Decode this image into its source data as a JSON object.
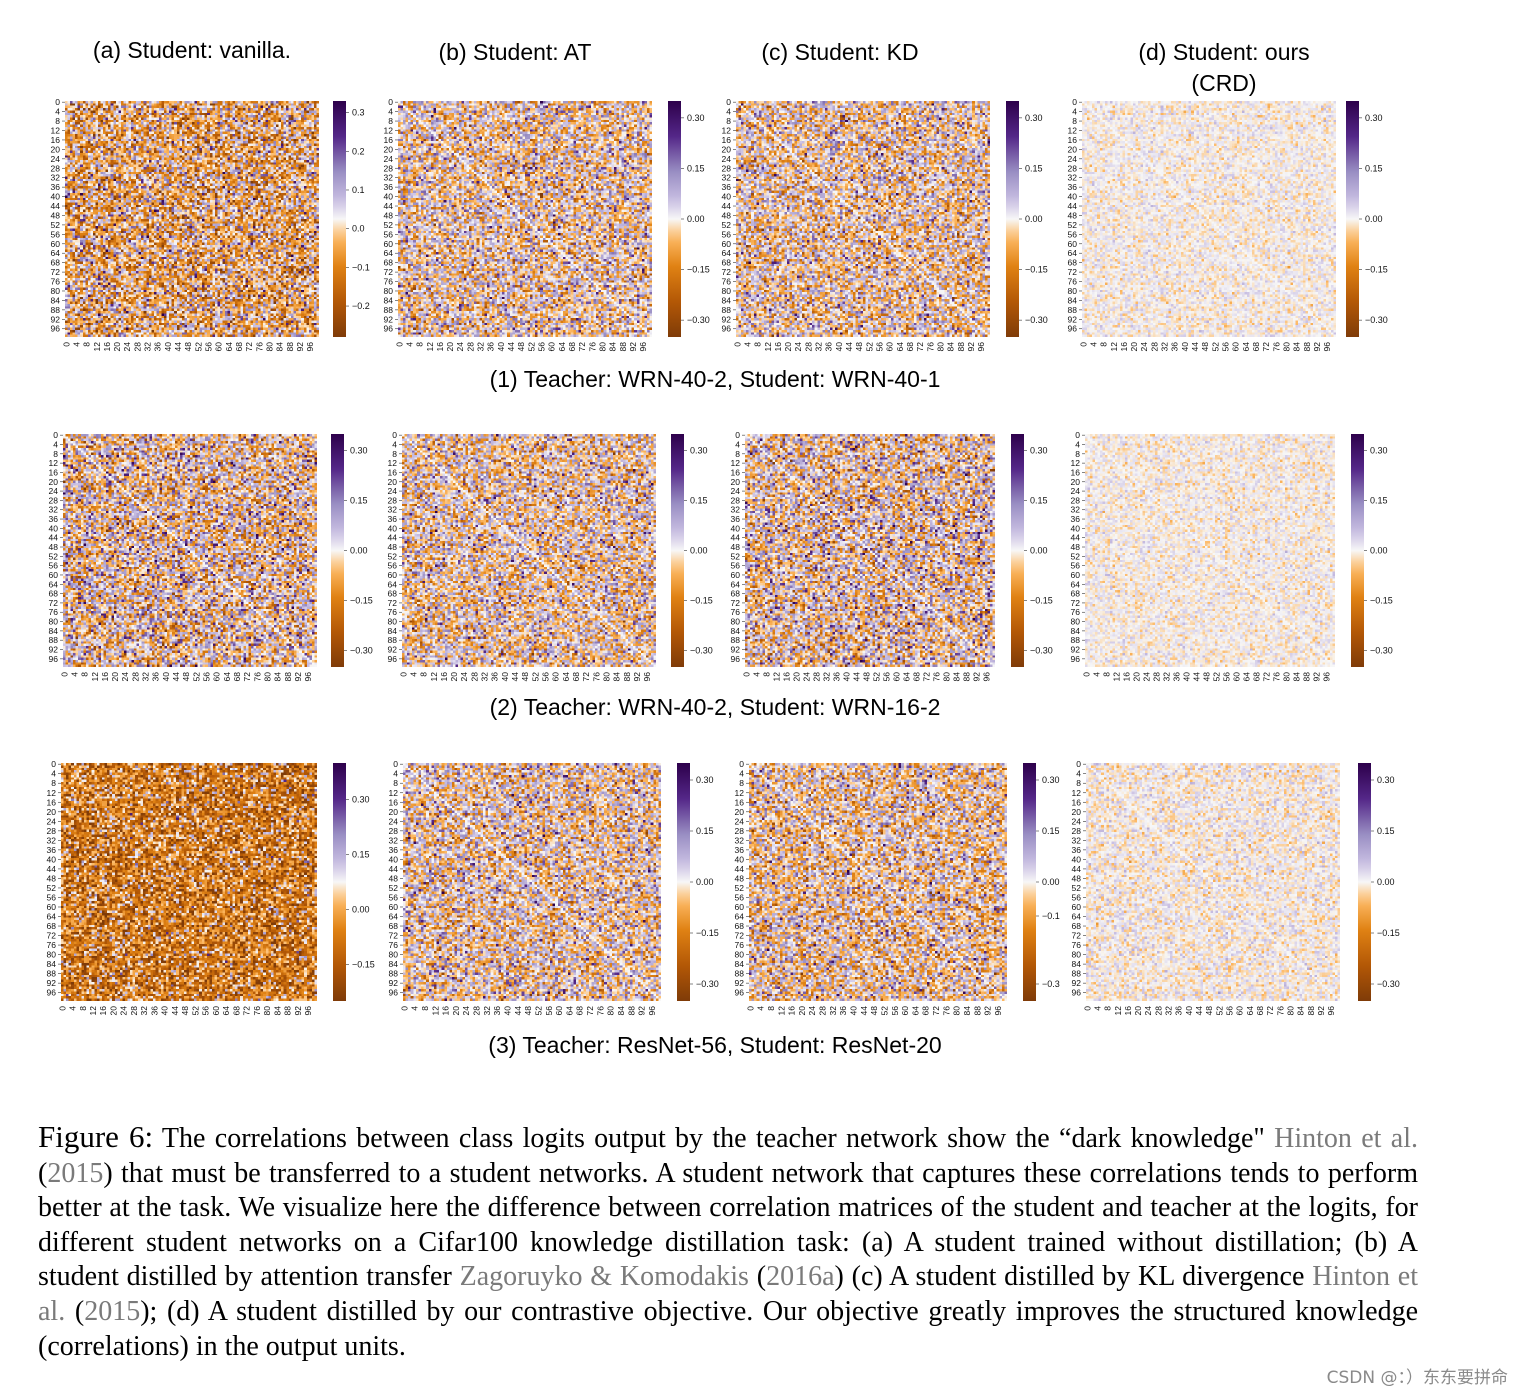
{
  "column_titles": [
    {
      "line1": "(a) Student: vanilla.",
      "line2": ""
    },
    {
      "line1": "(b) Student: AT",
      "line2": ""
    },
    {
      "line1": "(c) Student: KD",
      "line2": ""
    },
    {
      "line1": "(d) Student: ours",
      "line2": "(CRD)"
    }
  ],
  "row_captions": [
    "(1) Teacher: WRN-40-2, Student: WRN-40-1",
    "(2) Teacher: WRN-40-2, Student: WRN-16-2",
    "(3) Teacher: ResNet-56, Student: ResNet-20"
  ],
  "chart_data": {
    "type": "heatmap",
    "description": "Grid of 12 heatmaps: difference between correlation matrices of student and teacher logits (100x100 classes)",
    "colormap": {
      "negative": "#7f3b08",
      "zero": "#f7f7f7",
      "positive": "#2d004b"
    },
    "tick_labels": [
      "0",
      "4",
      "8",
      "12",
      "16",
      "20",
      "24",
      "28",
      "32",
      "36",
      "40",
      "44",
      "48",
      "52",
      "56",
      "60",
      "64",
      "68",
      "72",
      "76",
      "80",
      "84",
      "88",
      "92",
      "96"
    ],
    "matrix_size": 100,
    "panels": [
      {
        "row": 1,
        "col": "a",
        "colorbar_ticks": [
          "0.3",
          "0.2",
          "0.1",
          "0.0",
          "−0.1",
          "−0.2"
        ],
        "vmin": -0.28,
        "vmax": 0.33,
        "spread": 0.12,
        "bias": -0.02
      },
      {
        "row": 1,
        "col": "b",
        "colorbar_ticks": [
          "0.30",
          "0.15",
          "0.00",
          "−0.15",
          "−0.30"
        ],
        "vmin": -0.35,
        "vmax": 0.35,
        "spread": 0.11,
        "bias": 0.0
      },
      {
        "row": 1,
        "col": "c",
        "colorbar_ticks": [
          "0.30",
          "0.15",
          "0.00",
          "−0.15",
          "−0.30"
        ],
        "vmin": -0.35,
        "vmax": 0.35,
        "spread": 0.11,
        "bias": -0.005
      },
      {
        "row": 1,
        "col": "d",
        "colorbar_ticks": [
          "0.30",
          "0.15",
          "0.00",
          "−0.15",
          "−0.30"
        ],
        "vmin": -0.35,
        "vmax": 0.35,
        "spread": 0.025,
        "bias": 0.0
      },
      {
        "row": 2,
        "col": "a",
        "colorbar_ticks": [
          "0.30",
          "0.15",
          "0.00",
          "−0.15",
          "−0.30"
        ],
        "vmin": -0.35,
        "vmax": 0.35,
        "spread": 0.13,
        "bias": 0.0
      },
      {
        "row": 2,
        "col": "b",
        "colorbar_ticks": [
          "0.30",
          "0.15",
          "0.00",
          "−0.15",
          "−0.30"
        ],
        "vmin": -0.35,
        "vmax": 0.35,
        "spread": 0.11,
        "bias": 0.0
      },
      {
        "row": 2,
        "col": "c",
        "colorbar_ticks": [
          "0.30",
          "0.15",
          "0.00",
          "−0.15",
          "−0.30"
        ],
        "vmin": -0.35,
        "vmax": 0.35,
        "spread": 0.12,
        "bias": 0.005
      },
      {
        "row": 2,
        "col": "d",
        "colorbar_ticks": [
          "0.30",
          "0.15",
          "0.00",
          "−0.15",
          "−0.30"
        ],
        "vmin": -0.35,
        "vmax": 0.35,
        "spread": 0.025,
        "bias": 0.0
      },
      {
        "row": 3,
        "col": "a",
        "colorbar_ticks": [
          "0.30",
          "0.15",
          "0.00",
          "−0.15"
        ],
        "vmin": -0.25,
        "vmax": 0.4,
        "spread": 0.12,
        "bias": -0.07
      },
      {
        "row": 3,
        "col": "b",
        "colorbar_ticks": [
          "0.30",
          "0.15",
          "0.00",
          "−0.15",
          "−0.30"
        ],
        "vmin": -0.35,
        "vmax": 0.35,
        "spread": 0.11,
        "bias": 0.0
      },
      {
        "row": 3,
        "col": "c",
        "colorbar_ticks": [
          "0.30",
          "0.15",
          "0.00",
          "−0.1",
          "−0.3"
        ],
        "vmin": -0.35,
        "vmax": 0.35,
        "spread": 0.11,
        "bias": -0.01
      },
      {
        "row": 3,
        "col": "d",
        "colorbar_ticks": [
          "0.30",
          "0.15",
          "0.00",
          "−0.15",
          "−0.30"
        ],
        "vmin": -0.35,
        "vmax": 0.35,
        "spread": 0.03,
        "bias": 0.0
      }
    ]
  },
  "caption": {
    "figure_label": "Figure 6:",
    "t1": " The correlations between class logits output by the teacher network show the “dark knowledge\" ",
    "ref1_authors": "Hinton et al.",
    "paren_open_1": " (",
    "ref1_year": "2015",
    "t2": ") that must be transferred to a student networks.  A student network that captures these correlations tends to perform better at the task. We visualize here the difference between correlation matrices of the student and teacher at the logits, for different student networks on a Cifar100 knowledge distillation task: (a) A student trained without distillation; (b) A student distilled by attention transfer ",
    "ref2_authors": "Zagoruyko & Komodakis",
    "paren_open_2": " (",
    "ref2_year": "2016a",
    "t3": ") (c) A student distilled by KL divergence ",
    "ref3_authors": "Hinton et al.",
    "paren_open_3": " (",
    "ref3_year": "2015",
    "t4": "); (d) A student distilled by our contrastive objective. Our objective greatly improves the structured knowledge (correlations) in the output units."
  },
  "watermark": "CSDN @：）​东东要拼命"
}
